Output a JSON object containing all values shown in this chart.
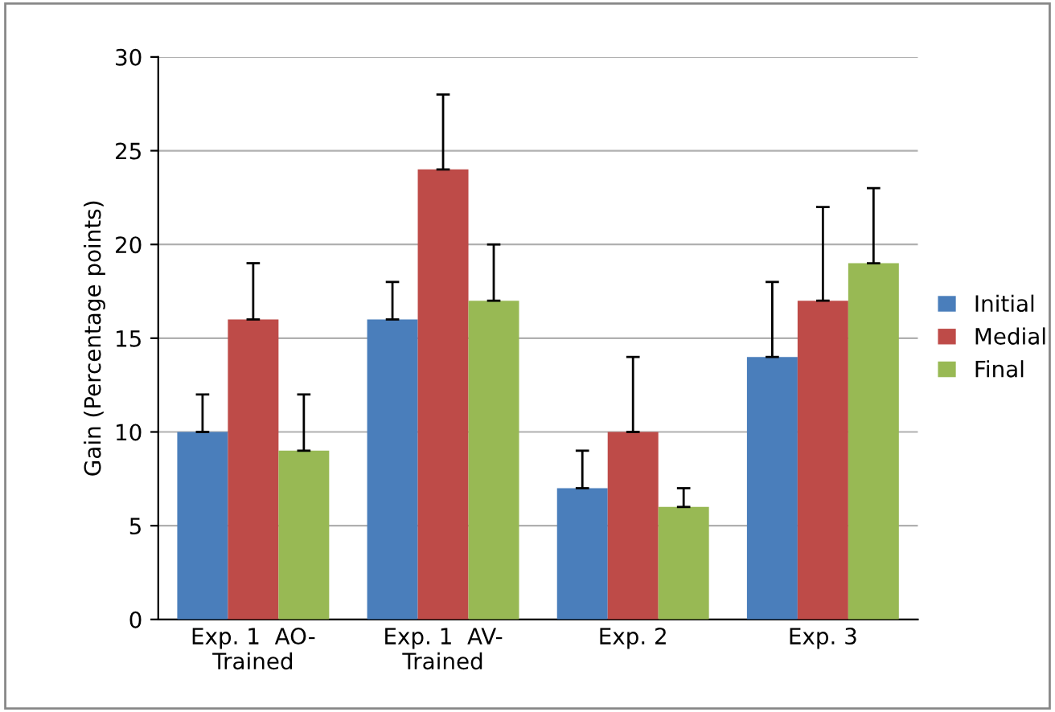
{
  "chart_data": {
    "type": "bar",
    "ylabel": "Gain (Percentage points)",
    "categories": [
      "Exp. 1  AO-\nTrained",
      "Exp. 1  AV-\nTrained",
      "Exp. 2",
      "Exp. 3"
    ],
    "series": [
      {
        "name": "Initial",
        "color": "#4a7ebb",
        "values": [
          10,
          16,
          7,
          14
        ],
        "errors": [
          [
            10,
            12
          ],
          [
            16,
            18
          ],
          [
            7,
            9
          ],
          [
            14,
            18
          ]
        ]
      },
      {
        "name": "Medial",
        "color": "#be4b48",
        "values": [
          16,
          24,
          10,
          17
        ],
        "errors": [
          [
            16,
            19
          ],
          [
            24,
            28
          ],
          [
            10,
            14
          ],
          [
            17,
            22
          ]
        ]
      },
      {
        "name": "Final",
        "color": "#98b954",
        "values": [
          9,
          17,
          6,
          19
        ],
        "errors": [
          [
            9,
            12
          ],
          [
            17,
            20
          ],
          [
            6,
            7
          ],
          [
            19,
            23
          ]
        ]
      }
    ],
    "ylim": [
      0,
      30
    ],
    "yticks": [
      0,
      5,
      10,
      15,
      20,
      25,
      30
    ],
    "grid": "y",
    "legend": "right"
  }
}
